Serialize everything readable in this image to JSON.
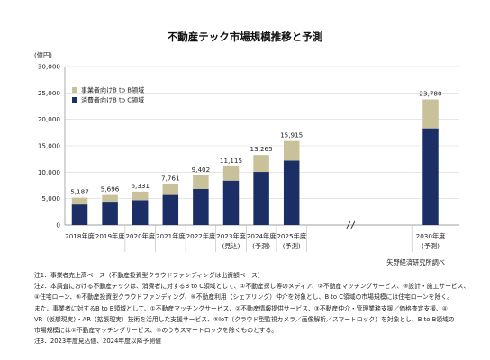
{
  "chart_data": {
    "type": "bar",
    "title": "不動産テック市場規模推移と予測",
    "ylabel": "(億円)",
    "ylim": [
      0,
      30000
    ],
    "yticks": [
      "0",
      "5,000",
      "10,000",
      "15,000",
      "20,000",
      "25,000",
      "30,000"
    ],
    "categories": [
      "2018年度",
      "2019年度",
      "2020年度",
      "2021年度",
      "2022年度",
      "2023年度",
      "2024年度",
      "2025年度",
      "2030年度"
    ],
    "sublabels": [
      "",
      "",
      "",
      "",
      "",
      "(見込)",
      "(予測)",
      "(予測)",
      "(予測)"
    ],
    "series": [
      {
        "name": "消費者向けB to C領域",
        "color": "#1b2f66",
        "values": [
          3900,
          4250,
          4700,
          5700,
          6850,
          8400,
          10050,
          12200,
          18300
        ]
      },
      {
        "name": "事業者向けB to B領域",
        "color": "#c8c199",
        "values": [
          1287,
          1446,
          1631,
          2061,
          2552,
          2715,
          3215,
          3715,
          5480
        ]
      }
    ],
    "totals": [
      "5,187",
      "5,696",
      "6,331",
      "7,761",
      "9,402",
      "11,115",
      "13,265",
      "15,915",
      "23,780"
    ],
    "legend_placement": "top-left",
    "grid": true,
    "axis_break": "between 2025年度 and 2030年度"
  },
  "source": "矢野経済研究所調べ",
  "notes": [
    "注1．事業者売上高ベース（不動産投資型クラウドファンディングは出資額ベース）",
    "注2．本調査における不動産テックは、消費者に対するB to C領域として、①不動産探し等のメディア、②不動産マッチングサービス、③設計・施工サービス、",
    "④住宅ローン、⑤不動産投資型クラウドファンディング、⑥不動産利用（シェアリング）仲介を対象とし、B to C領域の市場規模には住宅ローンを除く。",
    "また、事業者に対するB to B領域として、①不動産マッチングサービス、②不動産情報提供サービス、③不動産仲介・管理業務支援／価格査定支援、④",
    "VR（仮想現実）・AR（拡張現実）技術を活用した支援サービス、⑤IoT（クラウド型監視カメラ／画像解析／スマートロック）を対象とし、B to B領域の",
    "市場規模には①不動産マッチングサービス、⑤のうちスマートロックを除くものとする。",
    "注3．2023年度見込値、2024年度以降予測値"
  ]
}
